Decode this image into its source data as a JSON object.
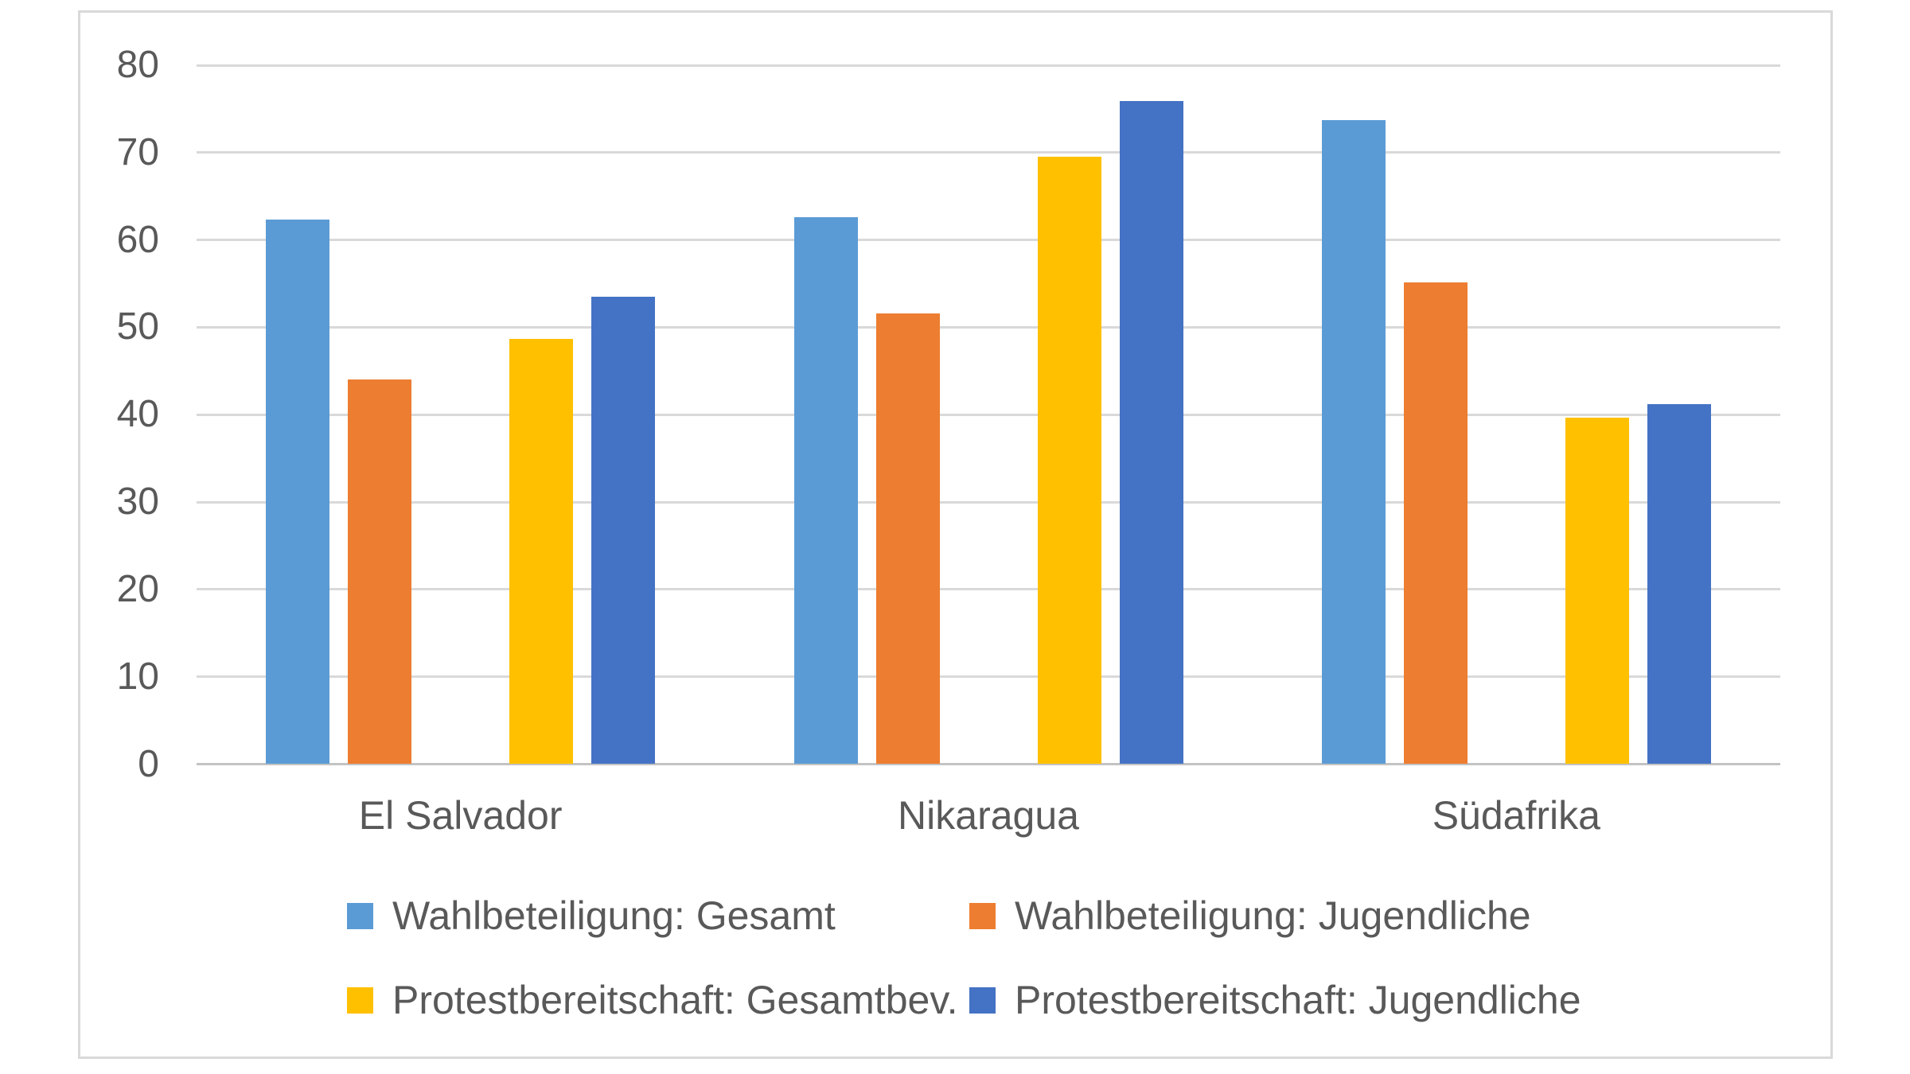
{
  "chart_data": {
    "type": "bar",
    "title": "",
    "categories": [
      "El Salvador",
      "Nikaragua",
      "Südafrika"
    ],
    "series": [
      {
        "name": "Wahlbeteiligung: Gesamt",
        "color": "#5B9BD5",
        "values": [
          62.3,
          62.6,
          73.7
        ]
      },
      {
        "name": "Wahlbeteiligung: Jugendliche",
        "color": "#ED7D31",
        "values": [
          44.0,
          51.6,
          55.1
        ]
      },
      {
        "name": "Protestbereitschaft: Gesamtbev.",
        "color": "#FFC000",
        "values": [
          48.7,
          69.5,
          39.7
        ]
      },
      {
        "name": "Protestbereitschaft: Jugendliche",
        "color": "#4472C4",
        "values": [
          53.5,
          75.9,
          41.2
        ]
      }
    ],
    "ylim": [
      0,
      80
    ],
    "y_ticks": [
      0,
      10,
      20,
      30,
      40,
      50,
      60,
      70,
      80
    ],
    "xlabel": "",
    "ylabel": "",
    "grid": true,
    "legend_position": "bottom",
    "legend_rows": [
      [
        0,
        1
      ],
      [
        2,
        3
      ]
    ]
  },
  "colors": {
    "grid": "#D9D9D9",
    "axis_line": "#C3C3C3",
    "text": "#595959",
    "chart_border": "#D9D9D9",
    "background": "#FFFFFF"
  }
}
